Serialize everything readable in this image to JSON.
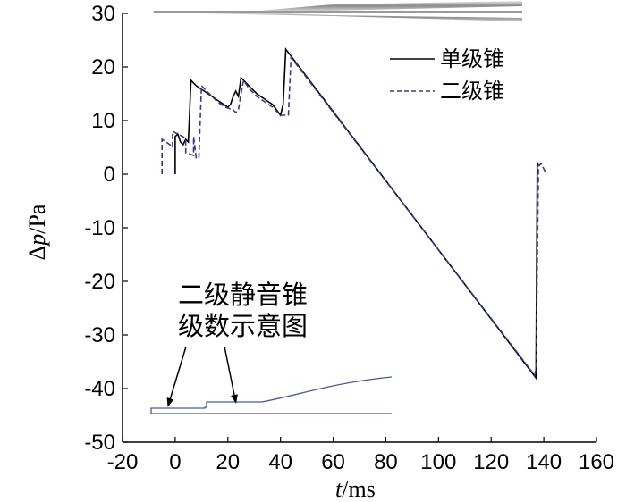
{
  "chart_data": {
    "type": "line",
    "xlabel": "t/ms",
    "ylabel": "Δp/Pa",
    "xlim": [
      -20,
      160
    ],
    "ylim": [
      -50,
      30
    ],
    "x_ticks": [
      -20,
      0,
      20,
      40,
      60,
      80,
      100,
      120,
      140,
      160
    ],
    "y_ticks": [
      -50,
      -40,
      -30,
      -20,
      -10,
      0,
      10,
      20,
      30
    ],
    "grid": false,
    "legend_position": "top-right",
    "series": [
      {
        "name": "单级锥",
        "color": "#000000",
        "style": "solid",
        "points": [
          [
            0,
            0
          ],
          [
            0,
            7
          ],
          [
            1,
            7.5
          ],
          [
            2,
            6
          ],
          [
            3,
            5.5
          ],
          [
            4,
            6.5
          ],
          [
            5,
            6
          ],
          [
            6,
            17.5
          ],
          [
            8,
            16.5
          ],
          [
            11,
            15.5
          ],
          [
            14,
            14.5
          ],
          [
            17,
            13.5
          ],
          [
            20,
            12.5
          ],
          [
            21,
            13
          ],
          [
            22,
            14.5
          ],
          [
            23,
            15.5
          ],
          [
            24,
            14.5
          ],
          [
            25,
            18
          ],
          [
            28,
            16.5
          ],
          [
            31,
            15
          ],
          [
            34,
            14
          ],
          [
            37,
            13
          ],
          [
            40,
            11
          ],
          [
            41,
            13
          ],
          [
            42,
            23.3
          ],
          [
            137,
            -38
          ],
          [
            137.5,
            2.2
          ],
          [
            138,
            1.5
          ]
        ]
      },
      {
        "name": "二级锥",
        "color": "#3a3a8c",
        "style": "dashed",
        "points": [
          [
            -5,
            0
          ],
          [
            -5,
            6.5
          ],
          [
            -4,
            6.2
          ],
          [
            -2,
            5.5
          ],
          [
            -1,
            5
          ],
          [
            -1,
            8
          ],
          [
            1,
            7.5
          ],
          [
            3,
            7
          ],
          [
            4,
            6.5
          ],
          [
            4,
            4
          ],
          [
            7,
            3.5
          ],
          [
            7,
            7
          ],
          [
            8,
            3
          ],
          [
            9,
            3
          ],
          [
            10,
            16.5
          ],
          [
            13,
            15
          ],
          [
            16,
            13.5
          ],
          [
            19,
            12.5
          ],
          [
            22,
            12
          ],
          [
            23,
            11.5
          ],
          [
            24,
            12
          ],
          [
            25,
            15
          ],
          [
            26,
            17.5
          ],
          [
            28,
            16
          ],
          [
            31,
            14.5
          ],
          [
            34,
            13.5
          ],
          [
            37,
            12.5
          ],
          [
            40,
            11
          ],
          [
            43,
            11
          ],
          [
            44,
            21.8
          ],
          [
            136.5,
            -37.5
          ],
          [
            137,
            -36.5
          ],
          [
            138,
            1.5
          ],
          [
            139,
            2
          ],
          [
            140,
            1
          ],
          [
            141,
            0
          ]
        ]
      }
    ],
    "annotation": {
      "line1": "二级静音锥",
      "line2": "级数示意图"
    }
  }
}
